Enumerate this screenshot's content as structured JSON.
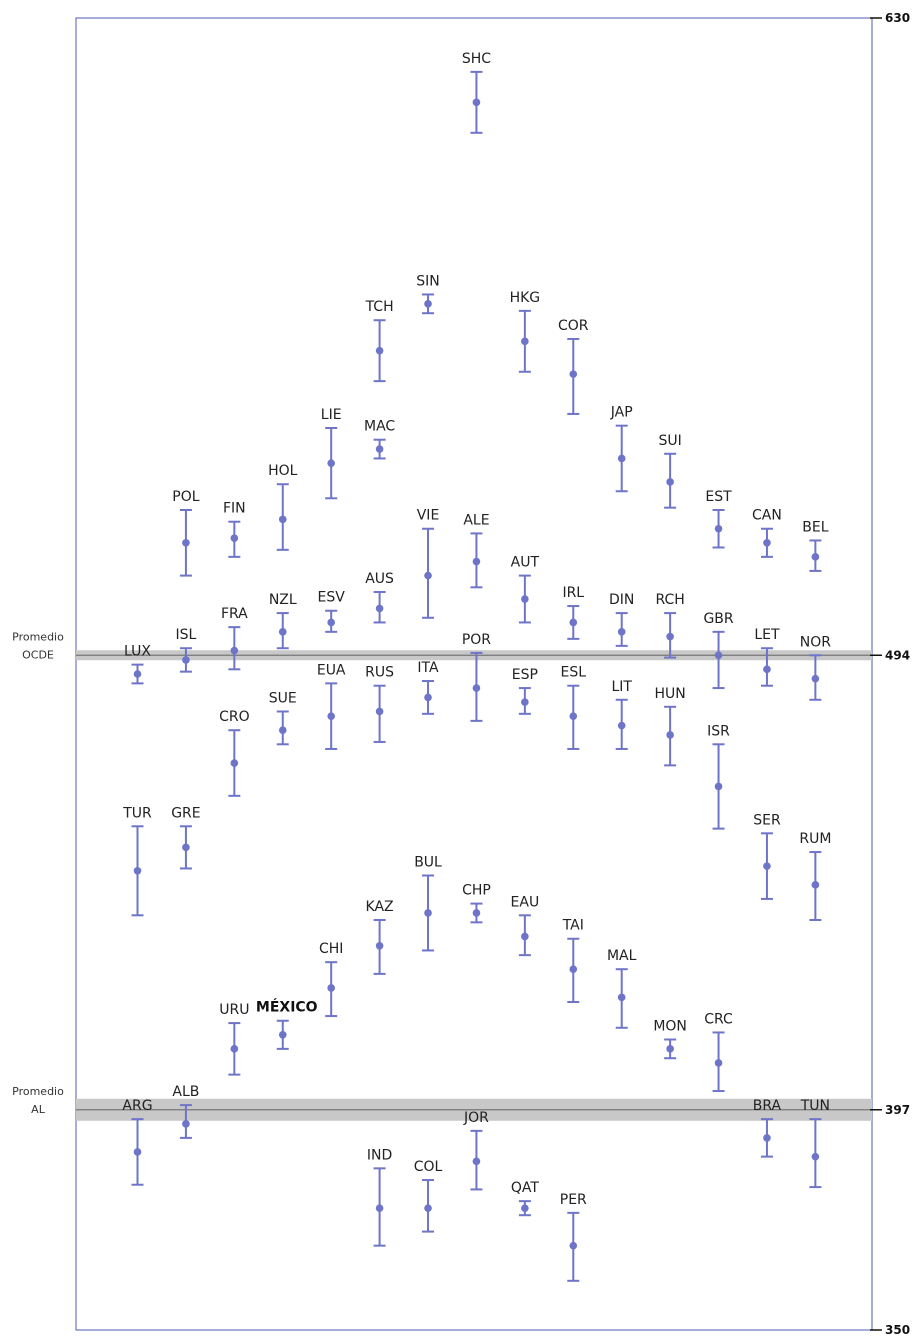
{
  "chart_data": {
    "type": "scatter",
    "subtype": "error-bar",
    "title": "",
    "xlabel": "",
    "ylabel": "",
    "ylim": [
      350,
      630
    ],
    "y_ticks": [
      "630",
      "494",
      "397",
      "350"
    ],
    "y_tick_values": [
      630,
      494,
      397,
      350
    ],
    "grid": false,
    "colors": {
      "marker": "#6E74C8",
      "band": "#C8C8C8",
      "ref_line": "#777777"
    },
    "reference_lines": [
      {
        "label_line1": "Promedio",
        "label_line2": "OCDE",
        "value": 494,
        "tick_label": "494"
      },
      {
        "label_line1": "Promedio",
        "label_line2": "AL",
        "value": 397,
        "tick_label": "397"
      }
    ],
    "points": [
      {
        "label": "SHC",
        "col": 8,
        "value": 612,
        "low": 605.5,
        "high": 618.5
      },
      {
        "label": "SIN",
        "col": 7,
        "value": 569,
        "low": 567,
        "high": 571
      },
      {
        "label": "TCH",
        "col": 6,
        "value": 559,
        "low": 552.5,
        "high": 565.5
      },
      {
        "label": "HKG",
        "col": 9,
        "value": 561,
        "low": 554.5,
        "high": 567.5
      },
      {
        "label": "COR",
        "col": 10,
        "value": 554,
        "low": 545.5,
        "high": 561.5
      },
      {
        "label": "LIE",
        "col": 5,
        "value": 535,
        "low": 527.5,
        "high": 542.5
      },
      {
        "label": "MAC",
        "col": 6,
        "value": 538,
        "low": 536,
        "high": 540
      },
      {
        "label": "JAP",
        "col": 11,
        "value": 536,
        "low": 529,
        "high": 543
      },
      {
        "label": "SUI",
        "col": 12,
        "value": 531,
        "low": 525.5,
        "high": 537
      },
      {
        "label": "HOL",
        "col": 4,
        "value": 523,
        "low": 516.5,
        "high": 530.5
      },
      {
        "label": "POL",
        "col": 2,
        "value": 518,
        "low": 511,
        "high": 525
      },
      {
        "label": "FIN",
        "col": 3,
        "value": 519,
        "low": 515,
        "high": 522.5
      },
      {
        "label": "EST",
        "col": 13,
        "value": 521,
        "low": 517,
        "high": 525
      },
      {
        "label": "CAN",
        "col": 14,
        "value": 518,
        "low": 515,
        "high": 521
      },
      {
        "label": "BEL",
        "col": 15,
        "value": 515,
        "low": 512,
        "high": 518.5
      },
      {
        "label": "VIE",
        "col": 7,
        "value": 511,
        "low": 502,
        "high": 521
      },
      {
        "label": "ALE",
        "col": 8,
        "value": 514,
        "low": 508.5,
        "high": 520
      },
      {
        "label": "AUT",
        "col": 9,
        "value": 506,
        "low": 501,
        "high": 511
      },
      {
        "label": "AUS",
        "col": 6,
        "value": 504,
        "low": 501,
        "high": 507.5
      },
      {
        "label": "ESV",
        "col": 5,
        "value": 501,
        "low": 499,
        "high": 503.5
      },
      {
        "label": "NZL",
        "col": 4,
        "value": 499,
        "low": 495.5,
        "high": 503
      },
      {
        "label": "IRL",
        "col": 10,
        "value": 501,
        "low": 497.5,
        "high": 504.5
      },
      {
        "label": "DIN",
        "col": 11,
        "value": 499,
        "low": 496,
        "high": 503
      },
      {
        "label": "RCH",
        "col": 12,
        "value": 498,
        "low": 493.5,
        "high": 503
      },
      {
        "label": "GBR",
        "col": 13,
        "value": 494,
        "low": 487,
        "high": 499
      },
      {
        "label": "FRA",
        "col": 3,
        "value": 495,
        "low": 491,
        "high": 500
      },
      {
        "label": "ISL",
        "col": 2,
        "value": 493,
        "low": 490.5,
        "high": 495.5
      },
      {
        "label": "LUX",
        "col": 1,
        "value": 490,
        "low": 488,
        "high": 492
      },
      {
        "label": "LET",
        "col": 14,
        "value": 491,
        "low": 487.5,
        "high": 495.5
      },
      {
        "label": "NOR",
        "col": 15,
        "value": 489,
        "low": 484.5,
        "high": 494
      },
      {
        "label": "POR",
        "col": 8,
        "value": 487,
        "low": 480,
        "high": 494.5
      },
      {
        "label": "ITA",
        "col": 7,
        "value": 485,
        "low": 481.5,
        "high": 488.5
      },
      {
        "label": "ESP",
        "col": 9,
        "value": 484,
        "low": 481.5,
        "high": 487
      },
      {
        "label": "RUS",
        "col": 6,
        "value": 482,
        "low": 475.5,
        "high": 487.5
      },
      {
        "label": "EUA",
        "col": 5,
        "value": 481,
        "low": 474,
        "high": 488
      },
      {
        "label": "ESL",
        "col": 10,
        "value": 481,
        "low": 474,
        "high": 487.5
      },
      {
        "label": "SUE",
        "col": 4,
        "value": 478,
        "low": 475,
        "high": 482
      },
      {
        "label": "LIT",
        "col": 11,
        "value": 479,
        "low": 474,
        "high": 484.5
      },
      {
        "label": "HUN",
        "col": 12,
        "value": 477,
        "low": 470.5,
        "high": 483
      },
      {
        "label": "CRO",
        "col": 3,
        "value": 471,
        "low": 464,
        "high": 478
      },
      {
        "label": "ISR",
        "col": 13,
        "value": 466,
        "low": 457,
        "high": 475
      },
      {
        "label": "TUR",
        "col": 1,
        "value": 448,
        "low": 438.5,
        "high": 457.5
      },
      {
        "label": "GRE",
        "col": 2,
        "value": 453,
        "low": 448.5,
        "high": 457.5
      },
      {
        "label": "SER",
        "col": 14,
        "value": 449,
        "low": 442,
        "high": 456
      },
      {
        "label": "RUM",
        "col": 15,
        "value": 445,
        "low": 437.5,
        "high": 452
      },
      {
        "label": "BUL",
        "col": 7,
        "value": 439,
        "low": 431,
        "high": 447
      },
      {
        "label": "CHP",
        "col": 8,
        "value": 439,
        "low": 437,
        "high": 441
      },
      {
        "label": "KAZ",
        "col": 6,
        "value": 432,
        "low": 426,
        "high": 437.5
      },
      {
        "label": "EAU",
        "col": 9,
        "value": 434,
        "low": 430,
        "high": 438.5
      },
      {
        "label": "TAI",
        "col": 10,
        "value": 427,
        "low": 420,
        "high": 433.5
      },
      {
        "label": "CHI",
        "col": 5,
        "value": 423,
        "low": 417,
        "high": 428.5
      },
      {
        "label": "MAL",
        "col": 11,
        "value": 421,
        "low": 414.5,
        "high": 427
      },
      {
        "label": "URU",
        "col": 3,
        "value": 410,
        "low": 404.5,
        "high": 415.5
      },
      {
        "label": "MÉXICO",
        "col": 4,
        "value": 413,
        "low": 410,
        "high": 416,
        "highlight": true
      },
      {
        "label": "MON",
        "col": 12,
        "value": 410,
        "low": 408,
        "high": 412
      },
      {
        "label": "CRC",
        "col": 13,
        "value": 407,
        "low": 401,
        "high": 413.5
      },
      {
        "label": "ARG",
        "col": 1,
        "value": 388,
        "low": 381,
        "high": 395
      },
      {
        "label": "ALB",
        "col": 2,
        "value": 394,
        "low": 391,
        "high": 398
      },
      {
        "label": "BRA",
        "col": 14,
        "value": 391,
        "low": 387,
        "high": 395
      },
      {
        "label": "TUN",
        "col": 15,
        "value": 387,
        "low": 380.5,
        "high": 395
      },
      {
        "label": "JOR",
        "col": 8,
        "value": 386,
        "low": 380,
        "high": 392.5
      },
      {
        "label": "IND",
        "col": 6,
        "value": 376,
        "low": 368,
        "high": 384.5
      },
      {
        "label": "COL",
        "col": 7,
        "value": 376,
        "low": 371,
        "high": 382
      },
      {
        "label": "QAT",
        "col": 9,
        "value": 376,
        "low": 374.5,
        "high": 377.5
      },
      {
        "label": "PER",
        "col": 10,
        "value": 368,
        "low": 360.5,
        "high": 375
      }
    ]
  }
}
